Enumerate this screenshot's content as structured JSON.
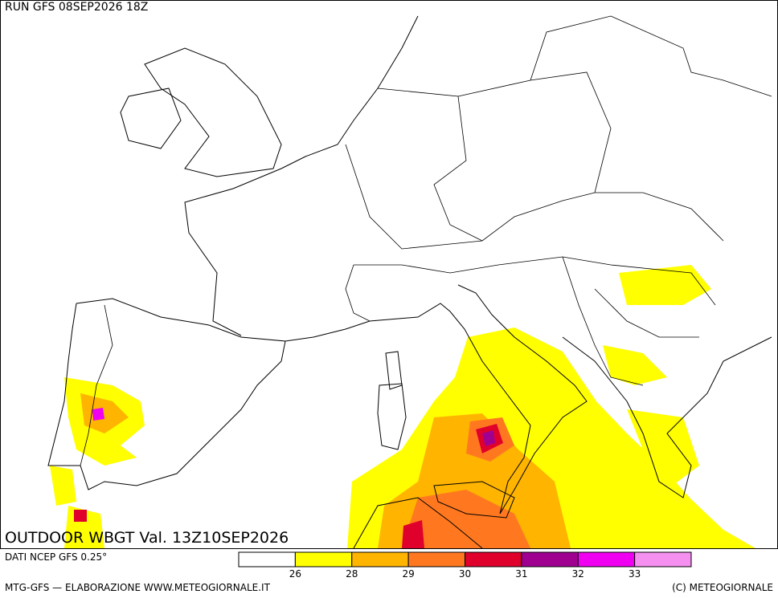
{
  "header": {
    "run": "RUN GFS 08SEP2026 18Z"
  },
  "title": "OUTDOOR WBGT Val. 13Z10SEP2026",
  "source": "DATI NCEP GFS 0.25°",
  "footer": {
    "left": "MTG-GFS — ELABORAZIONE WWW.METEOGIORNALE.IT",
    "right": "(C) METEOGIORNALE"
  },
  "legend": {
    "colors": [
      "#ffffff",
      "#ffff00",
      "#ffb400",
      "#ff7820",
      "#e0002c",
      "#a00090",
      "#f000f0",
      "#f590f0"
    ],
    "labels": [
      26,
      28,
      29,
      30,
      31,
      32,
      33
    ]
  }
}
